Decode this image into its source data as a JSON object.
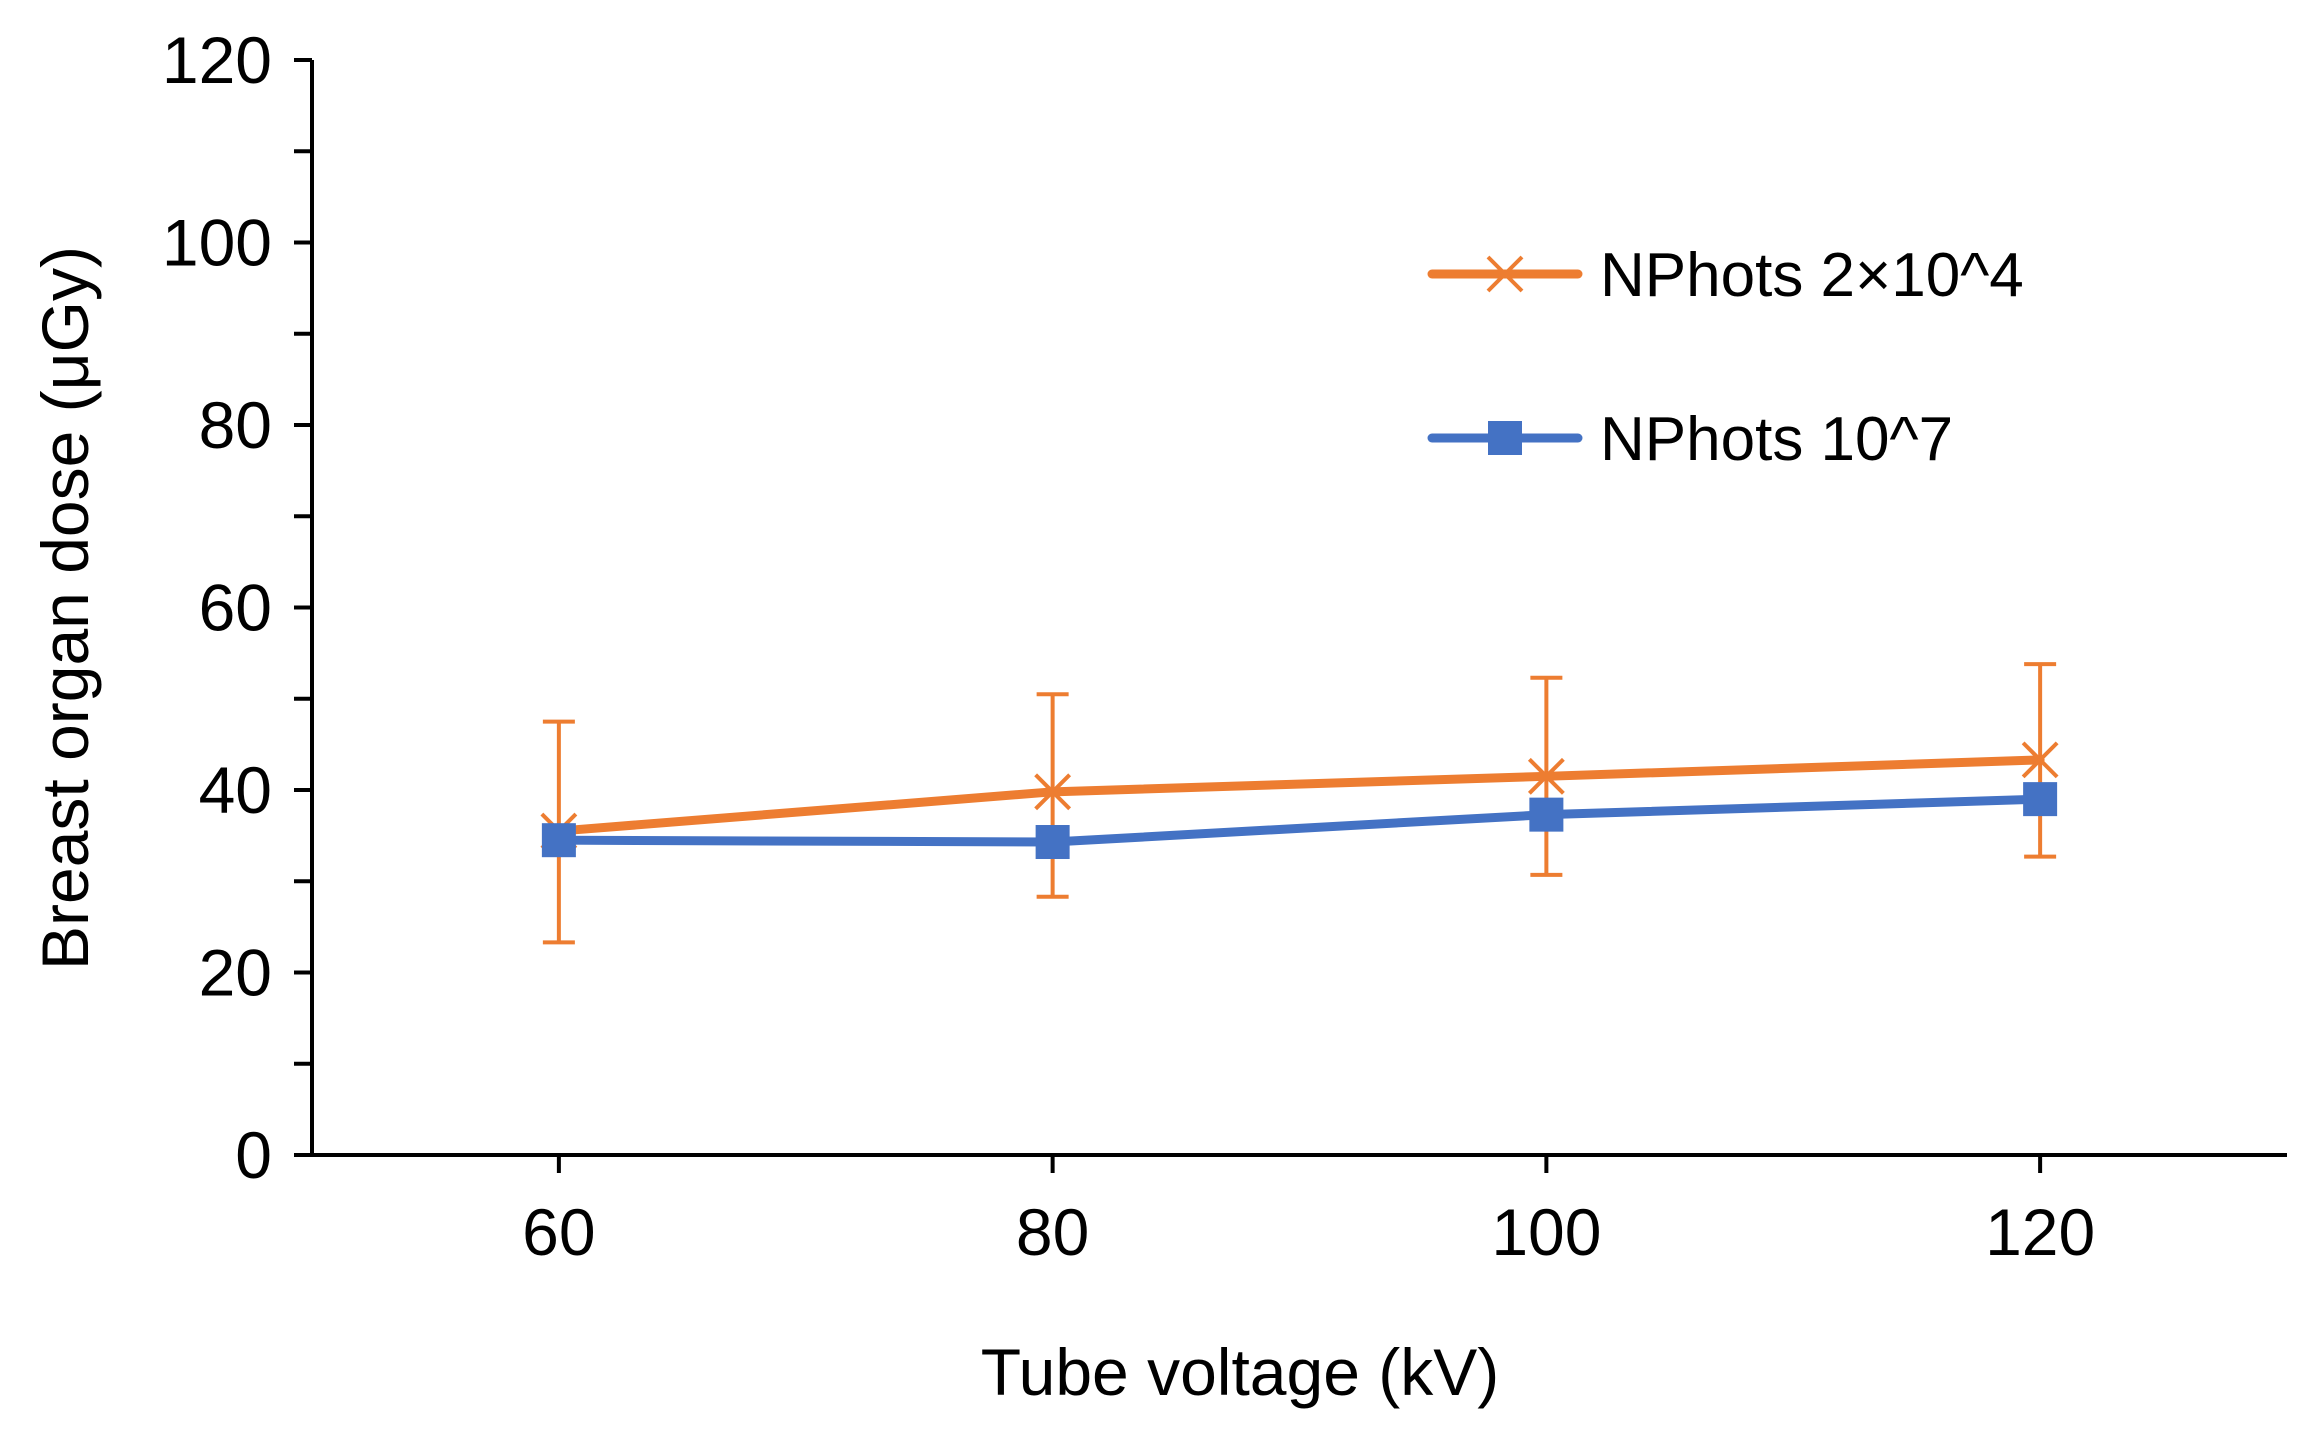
{
  "chart_data": {
    "type": "line",
    "xlabel": "Tube voltage (kV)",
    "ylabel": "Breast organ dose (μGy)",
    "x": [
      60,
      80,
      100,
      120
    ],
    "xlim": [
      50,
      130
    ],
    "ylim": [
      0,
      120
    ],
    "ymajor_ticks": [
      0,
      20,
      40,
      60,
      80,
      100,
      120
    ],
    "yminor_step": 10,
    "x_ticks": [
      60,
      80,
      100,
      120
    ],
    "grid": false,
    "legend_position": "top-right",
    "series": [
      {
        "name": "NPhots 2×10^4",
        "color": "#ED7D31",
        "marker": "x",
        "values": [
          35.5,
          39.8,
          41.5,
          43.3
        ],
        "error_low": [
          23.3,
          28.3,
          30.7,
          32.7
        ],
        "error_high": [
          47.5,
          50.5,
          52.3,
          53.8
        ]
      },
      {
        "name": "NPhots 10^7",
        "color": "#4472C4",
        "marker": "square",
        "values": [
          34.5,
          34.3,
          37.3,
          39.0
        ]
      }
    ]
  }
}
